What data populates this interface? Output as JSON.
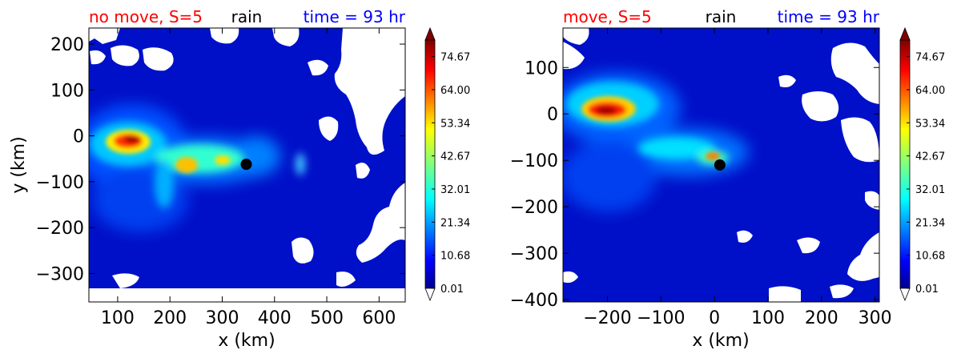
{
  "chart_data": [
    {
      "type": "heatmap",
      "title_left": "no move, S=5",
      "title_center": "rain",
      "title_right": "time = 93 hr",
      "title_colors": {
        "left": "#ff0000",
        "center": "#000000",
        "right": "#0000ff"
      },
      "xlabel": "x (km)",
      "ylabel": "y (km)",
      "xlim": [
        45,
        650
      ],
      "ylim": [
        -362,
        235
      ],
      "xticks": [
        "100",
        "200",
        "300",
        "400",
        "500",
        "600"
      ],
      "xtick_values": [
        100,
        200,
        300,
        400,
        500,
        600
      ],
      "yticks": [
        "200",
        "100",
        "0",
        "−100",
        "−200",
        "−300"
      ],
      "ytick_values": [
        200,
        100,
        0,
        -100,
        -200,
        -300
      ],
      "center_marker": {
        "x": 346,
        "y": -62
      },
      "rain_max": {
        "x": 120,
        "y": -5,
        "value": 70
      },
      "colorbar": {
        "ticks": [
          "74.67",
          "64.00",
          "53.34",
          "42.67",
          "32.01",
          "21.34",
          "10.68",
          "0.01"
        ],
        "tick_values": [
          74.67,
          64.0,
          53.34,
          42.67,
          32.01,
          21.34,
          10.68,
          0.01
        ],
        "min": 0.01,
        "max": 80,
        "extend": "both"
      }
    },
    {
      "type": "heatmap",
      "title_left": "move, S=5",
      "title_center": "rain",
      "title_right": "time = 93 hr",
      "title_colors": {
        "left": "#ff0000",
        "center": "#000000",
        "right": "#0000ff"
      },
      "xlabel": "x (km)",
      "ylabel": "",
      "xlim": [
        -283,
        308
      ],
      "ylim": [
        -405,
        185
      ],
      "xticks": [
        "−200",
        "−100",
        "0",
        "100",
        "200",
        "300"
      ],
      "xtick_values": [
        -200,
        -100,
        0,
        100,
        200,
        300
      ],
      "yticks": [
        "100",
        "0",
        "−100",
        "−200",
        "−300",
        "−400"
      ],
      "ytick_values": [
        100,
        0,
        -100,
        -200,
        -300,
        -400
      ],
      "center_marker": {
        "x": 10,
        "y": -110
      },
      "rain_max": {
        "x": -205,
        "y": 5,
        "value": 75
      },
      "colorbar": {
        "ticks": [
          "74.67",
          "64.00",
          "53.34",
          "42.67",
          "32.01",
          "21.34",
          "10.68",
          "0.01"
        ],
        "tick_values": [
          74.67,
          64.0,
          53.34,
          42.67,
          32.01,
          21.34,
          10.68,
          0.01
        ],
        "min": 0.01,
        "max": 80,
        "extend": "both"
      }
    }
  ]
}
